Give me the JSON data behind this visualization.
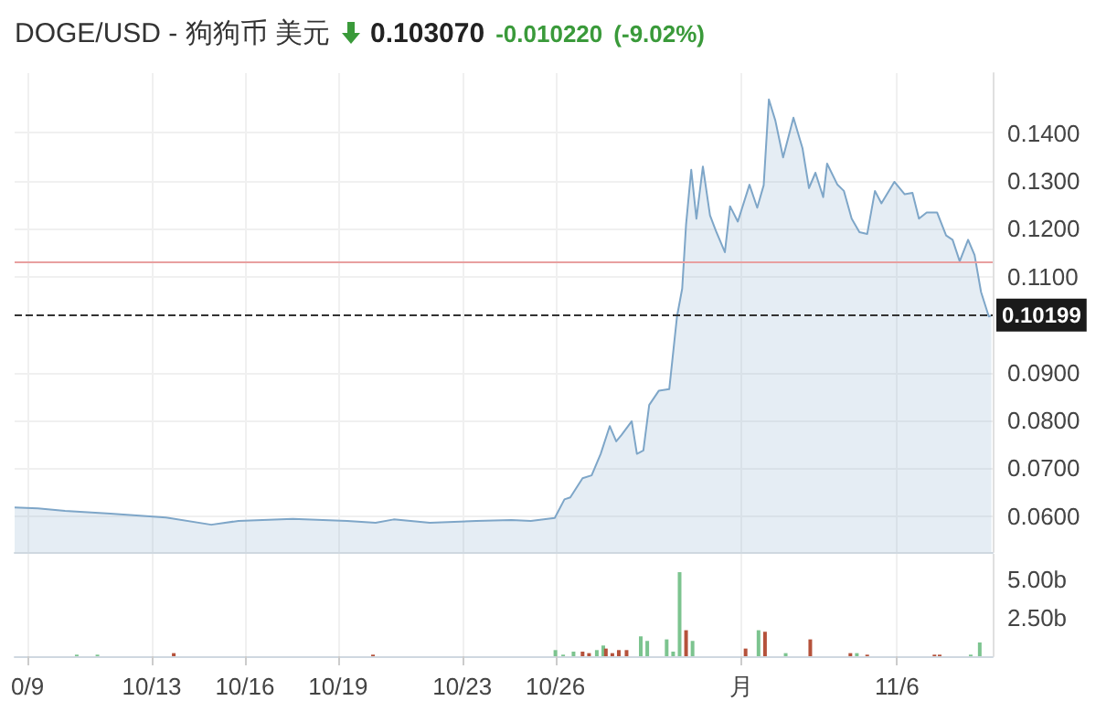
{
  "chart_data": [
    {
      "type": "area",
      "title": "DOGE/USD - 狗狗币 美元",
      "annotations": [
        "0.103070",
        "-0.010220",
        "(-9.02%)"
      ],
      "x": [
        "--10-08T14:00",
        "--10-09T08:00",
        "--10-10T05:00",
        "--10-11T16:00",
        "--10-13T11:00",
        "--10-14T22:00",
        "--10-15T19:00",
        "--10-17T13:00",
        "--10-19T07:00",
        "--10-20T05:00",
        "--10-20T19:00",
        "--10-21T23:00",
        "--10-23T11:00",
        "--10-24T14:00",
        "--10-25T05:00",
        "--10-25T23:30",
        "--10-26T07:00",
        "--10-26T11:30",
        "--10-26T21:00",
        "--10-27T04:00",
        "--10-27T11:00",
        "--10-27T18:00",
        "--10-27T23:00",
        "--10-28T03:00",
        "--10-28T11:00",
        "--10-28T15:00",
        "--10-28T20:00",
        "--10-29T00:30",
        "--10-29T08:00",
        "--10-29T16:00",
        "--10-29T22:00",
        "--10-30T02:00",
        "--10-30T05:00",
        "--10-30T09:00",
        "--10-30T13:00",
        "--10-30T18:00",
        "--10-30T23:30",
        "--10-31T04:00",
        "--10-31T11:00",
        "--10-31T15:00",
        "--10-31T21:00",
        "--11-01T06:00",
        "--11-01T12:00",
        "--11-01T17:00",
        "--11-01T21:00",
        "--11-02T02:00",
        "--11-02T08:00",
        "--11-02T16:00",
        "--11-02T23:00",
        "--11-03T04:00",
        "--11-03T09:00",
        "--11-03T15:00",
        "--11-03T18:00",
        "--11-04T02:00",
        "--11-04T07:00",
        "--11-04T13:00",
        "--11-04T19:00",
        "--11-05T01:00",
        "--11-05T07:00",
        "--11-05T12:00",
        "--11-05T22:00",
        "--11-06T06:00",
        "--11-06T12:00",
        "--11-06T17:00",
        "--11-06T23:00",
        "--11-07T07:00",
        "--11-07T14:00",
        "--11-07T19:00",
        "--11-08T00:30",
        "--11-08T07:00",
        "--11-08T12:00",
        "--11-08T17:00",
        "--11-08T23:00",
        "--11-09T01:00"
      ],
      "series": [
        {
          "color": "#7ea6c8",
          "values": [
            0.0618,
            0.0616,
            0.0611,
            0.0605,
            0.0597,
            0.0582,
            0.059,
            0.0594,
            0.059,
            0.0586,
            0.0593,
            0.0586,
            0.059,
            0.0592,
            0.059,
            0.0596,
            0.0635,
            0.0639,
            0.0679,
            0.0685,
            0.073,
            0.0788,
            0.0756,
            0.0769,
            0.0798,
            0.073,
            0.0737,
            0.0832,
            0.0862,
            0.0865,
            0.1017,
            0.1075,
            0.1209,
            0.1323,
            0.1221,
            0.133,
            0.1228,
            0.1196,
            0.1151,
            0.1247,
            0.1215,
            0.1292,
            0.1244,
            0.1291,
            0.147,
            0.1426,
            0.1349,
            0.1432,
            0.1368,
            0.1285,
            0.1317,
            0.1266,
            0.1336,
            0.1292,
            0.1279,
            0.1221,
            0.1193,
            0.1189,
            0.1279,
            0.1253,
            0.1298,
            0.1272,
            0.1275,
            0.1221,
            0.1234,
            0.1234,
            0.1186,
            0.1177,
            0.1132,
            0.1177,
            0.1145,
            0.1068,
            0.1017,
            0.1019
          ]
        }
      ],
      "xlim": [
        "--10-08T14:00",
        "--11-09T02:00"
      ],
      "ylim": [
        0.0525,
        0.1525
      ],
      "yticks": [
        {
          "value": 0.06,
          "label": "0.0600"
        },
        {
          "value": 0.07,
          "label": "0.0700"
        },
        {
          "value": 0.08,
          "label": "0.0800"
        },
        {
          "value": 0.09,
          "label": "0.0900"
        },
        {
          "value": 0.11,
          "label": "0.1100"
        },
        {
          "value": 0.12,
          "label": "0.1200"
        },
        {
          "value": 0.13,
          "label": "0.1300"
        },
        {
          "value": 0.14,
          "label": "0.1400"
        }
      ],
      "ref_lines": [
        {
          "axis": "y",
          "value": 0.1131,
          "color": "#e8a0a0"
        },
        {
          "axis": "y",
          "value": 0.10199,
          "label": "0.10199",
          "color": "#333333",
          "line_style": "dashed"
        }
      ],
      "grid": true,
      "tick_labels": "y"
    },
    {
      "type": "bar",
      "x": [
        "--10-10T14:00",
        "--10-11T06:00",
        "--10-13T17:00",
        "--10-20T03:00",
        "--10-26T00:00",
        "--10-26T06:00",
        "--10-26T14:00",
        "--10-26T21:00",
        "--10-27T02:00",
        "--10-27T08:00",
        "--10-27T13:00",
        "--10-27T15:00",
        "--10-27T20:00",
        "--10-28T01:00",
        "--10-28T07:00",
        "--10-28T18:00",
        "--10-28T23:00",
        "--10-29T14:00",
        "--10-29T19:00",
        "--10-30T00:00",
        "--10-30T05:00",
        "--10-30T10:00",
        "--11-01T03:00",
        "--11-01T13:00",
        "--11-01T18:00",
        "--11-02T10:00",
        "--11-03T05:00",
        "--11-04T12:00",
        "--11-04T17:00",
        "--11-05T01:00",
        "--11-07T05:00",
        "--11-07T09:00",
        "--11-08T09:00",
        "--11-08T16:00"
      ],
      "series": [
        {
          "values": [
            0.1,
            0.1,
            0.2,
            0.1,
            0.4,
            0.1,
            0.3,
            0.3,
            0.2,
            0.4,
            0.7,
            0.5,
            0.2,
            0.4,
            0.4,
            1.3,
            1.0,
            1.1,
            0.3,
            5.5,
            1.7,
            1.0,
            0.5,
            1.7,
            1.6,
            0.2,
            1.1,
            0.2,
            0.2,
            0.1,
            0.1,
            0.1,
            0.1,
            0.9
          ],
          "colors": [
            "#7cc48f",
            "#7cc48f",
            "#b5523b",
            "#b5523b",
            "#7cc48f",
            "#7cc48f",
            "#7cc48f",
            "#b5523b",
            "#b5523b",
            "#7cc48f",
            "#7cc48f",
            "#b5523b",
            "#b5523b",
            "#b5523b",
            "#b5523b",
            "#7cc48f",
            "#7cc48f",
            "#7cc48f",
            "#7cc48f",
            "#7cc48f",
            "#b5523b",
            "#7cc48f",
            "#b5523b",
            "#7cc48f",
            "#b5523b",
            "#7cc48f",
            "#b5523b",
            "#b5523b",
            "#7cc48f",
            "#b5523b",
            "#b5523b",
            "#b5523b",
            "#7cc48f",
            "#7cc48f"
          ]
        }
      ],
      "xlim": [
        "--10-08T14:00",
        "--11-09T02:00"
      ],
      "xticks": [
        {
          "value": "--10-09",
          "label": "0/9"
        },
        {
          "value": "--10-13",
          "label": "10/13"
        },
        {
          "value": "--10-16",
          "label": "10/16"
        },
        {
          "value": "--10-19",
          "label": "10/19"
        },
        {
          "value": "--10-23",
          "label": "10/23"
        },
        {
          "value": "--10-26",
          "label": "10/26"
        },
        {
          "value": "--11-01",
          "label": "月"
        },
        {
          "value": "--11-06",
          "label": "11/6"
        }
      ],
      "ylim": [
        0,
        6.7
      ],
      "yticks": [
        {
          "value": 2.5,
          "label": "2.50b"
        },
        {
          "value": 5,
          "label": "5.00b"
        }
      ],
      "grid": "x"
    }
  ]
}
